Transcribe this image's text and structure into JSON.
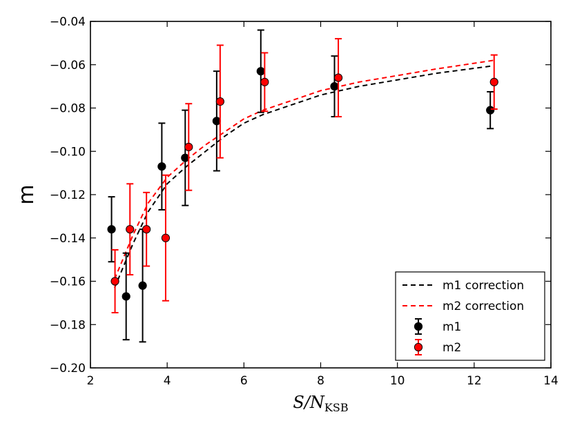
{
  "chart_data": {
    "type": "scatter",
    "title": "",
    "xlabel": "S/N",
    "xlabel_subscript": "KSB",
    "ylabel": "m",
    "xlim": [
      2,
      14
    ],
    "ylim": [
      -0.2,
      -0.04
    ],
    "xticks": [
      2,
      4,
      6,
      8,
      10,
      12,
      14
    ],
    "xtick_labels": [
      "2",
      "4",
      "6",
      "8",
      "10",
      "12",
      "14"
    ],
    "yticks": [
      -0.2,
      -0.18,
      -0.16,
      -0.14,
      -0.12,
      -0.1,
      -0.08,
      -0.06,
      -0.04
    ],
    "ytick_labels": [
      "−0.20",
      "−0.18",
      "−0.16",
      "−0.14",
      "−0.12",
      "−0.10",
      "−0.08",
      "−0.06",
      "−0.04"
    ],
    "grid": false,
    "legend_position": "lower-right",
    "series": [
      {
        "name": "m1 correction",
        "kind": "line",
        "style": "dashed",
        "color": "#000000",
        "x": [
          2.63,
          3.1,
          3.5,
          4.0,
          4.5,
          5.0,
          5.5,
          6.0,
          6.5,
          7.0,
          7.5,
          8.0,
          8.5,
          9.0,
          10.0,
          11.0,
          12.5
        ],
        "y": [
          -0.163,
          -0.143,
          -0.128,
          -0.115,
          -0.107,
          -0.1,
          -0.093,
          -0.087,
          -0.083,
          -0.08,
          -0.077,
          -0.074,
          -0.072,
          -0.07,
          -0.067,
          -0.064,
          -0.0605
        ]
      },
      {
        "name": "m2 correction",
        "kind": "line",
        "style": "dashed",
        "color": "#ff0000",
        "x": [
          2.63,
          3.1,
          3.5,
          4.0,
          4.5,
          5.0,
          5.5,
          6.0,
          6.5,
          7.0,
          7.5,
          8.0,
          8.5,
          9.0,
          10.0,
          11.0,
          12.5
        ],
        "y": [
          -0.159,
          -0.139,
          -0.124,
          -0.112,
          -0.104,
          -0.097,
          -0.091,
          -0.085,
          -0.081,
          -0.078,
          -0.075,
          -0.072,
          -0.07,
          -0.068,
          -0.065,
          -0.062,
          -0.058
        ]
      },
      {
        "name": "m1",
        "kind": "errorbar",
        "color": "#000000",
        "x": [
          2.55,
          2.93,
          3.36,
          3.86,
          4.47,
          5.29,
          6.44,
          8.36,
          12.42
        ],
        "y": [
          -0.136,
          -0.167,
          -0.162,
          -0.107,
          -0.103,
          -0.086,
          -0.063,
          -0.07,
          -0.081
        ],
        "yerr": [
          0.015,
          0.02,
          0.026,
          0.02,
          0.022,
          0.023,
          0.019,
          0.014,
          0.0085
        ]
      },
      {
        "name": "m2",
        "kind": "errorbar",
        "color": "#ff0000",
        "x": [
          2.64,
          3.03,
          3.46,
          3.96,
          4.56,
          5.38,
          6.54,
          8.46,
          12.52
        ],
        "y": [
          -0.16,
          -0.136,
          -0.136,
          -0.14,
          -0.098,
          -0.077,
          -0.068,
          -0.066,
          -0.068
        ],
        "yerr": [
          0.0145,
          0.021,
          0.017,
          0.029,
          0.02,
          0.026,
          0.0135,
          0.018,
          0.0125
        ]
      }
    ]
  }
}
